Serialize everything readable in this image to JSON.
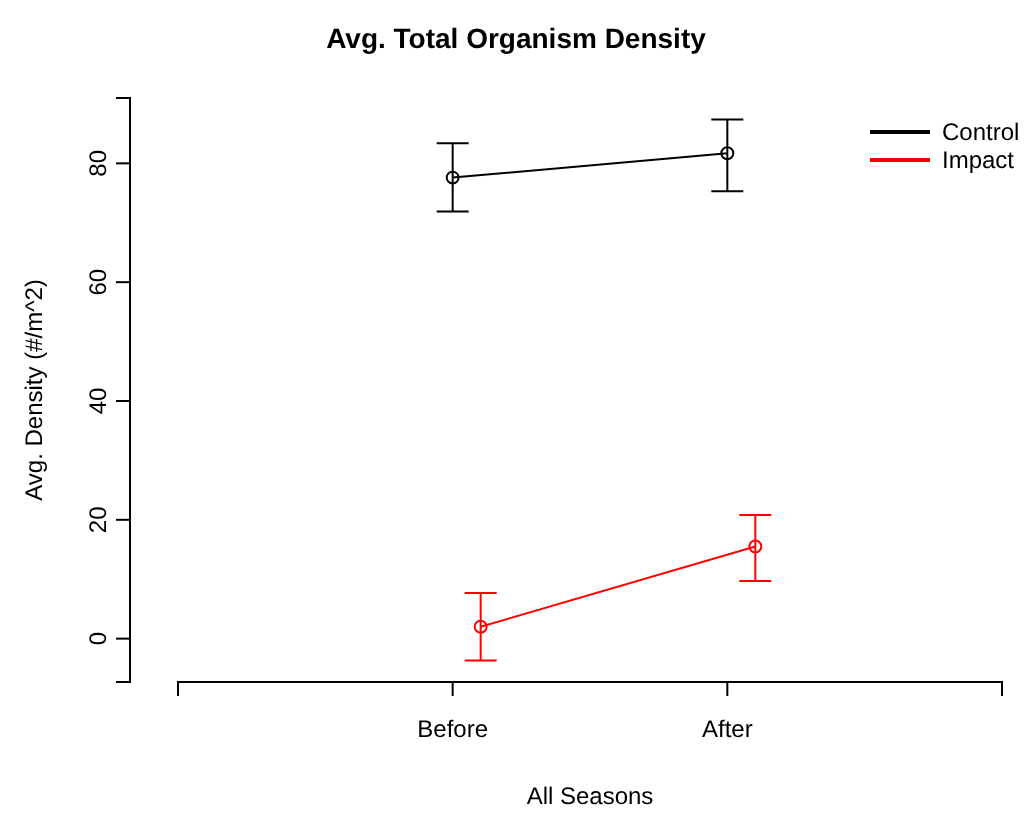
{
  "chart_data": {
    "type": "line",
    "title": "Avg. Total Organism Density",
    "xlabel": "All Seasons",
    "ylabel": "Avg. Density (#/m^2)",
    "categories": [
      null,
      "Before",
      "After",
      null
    ],
    "ylim": [
      -7.3,
      91
    ],
    "yticks": [
      0,
      20,
      40,
      60,
      80
    ],
    "series": [
      {
        "name": "Control",
        "color": "#000000",
        "values": [
          null,
          77.6,
          81.7,
          null
        ],
        "errors": [
          null,
          [
            71.9,
            83.4
          ],
          [
            75.3,
            87.4
          ],
          null
        ]
      },
      {
        "name": "Impact",
        "color": "#ff0000",
        "values": [
          null,
          2.0,
          15.5,
          null
        ],
        "errors": [
          null,
          [
            -3.7,
            7.7
          ],
          [
            9.7,
            20.8
          ],
          null
        ]
      }
    ],
    "marker": "circle",
    "line_style": "solid",
    "legend": "top right",
    "grid": false
  }
}
